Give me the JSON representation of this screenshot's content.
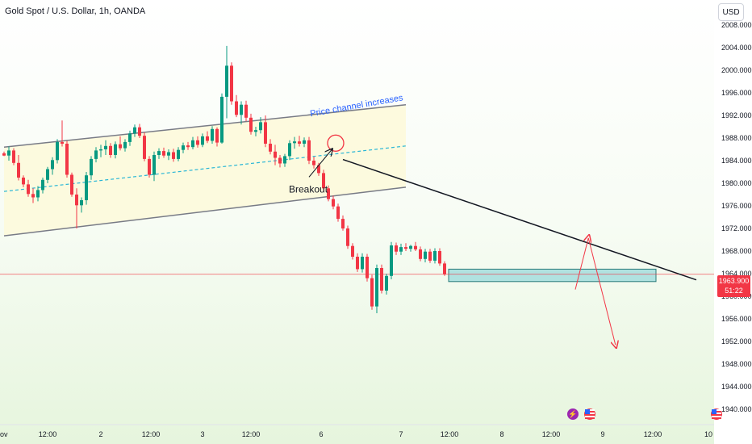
{
  "header": {
    "title": "Gold Spot / U.S. Dollar, 1h, OANDA",
    "currency_button": "USD"
  },
  "annotations": {
    "channel_label": "Price channel increases",
    "breakout_label": "Breakout"
  },
  "last_price": {
    "value": "1963.900",
    "countdown": "51:22"
  },
  "icons": {
    "event_1": "lightning-icon",
    "event_2": "us-flag-icon",
    "event_3": "us-flag-icon"
  },
  "colors": {
    "bull": "#089981",
    "bear": "#f23645",
    "channel_fill": "#fdf9d9",
    "channel_line": "#787b86",
    "mid_line": "#2ab6d6",
    "support_zone": "#9fdcdc",
    "arrow": "#f23645",
    "last_price": "#f23645",
    "annotation_blue": "#2962ff"
  },
  "chart_data": {
    "type": "candlestick",
    "title": "Gold Spot / U.S. Dollar, 1h, OANDA",
    "xlabel": "",
    "ylabel": "",
    "currency": "USD",
    "ylim": [
      1938,
      2010
    ],
    "y_ticks": [
      "2008.000",
      "2004.000",
      "2000.000",
      "1996.000",
      "1992.000",
      "1988.000",
      "1984.000",
      "1980.000",
      "1976.000",
      "1972.000",
      "1968.000",
      "1964.000",
      "1960.000",
      "1956.000",
      "1952.000",
      "1948.000",
      "1944.000",
      "1940.000"
    ],
    "x_ticks": [
      "ov",
      "12:00",
      "2",
      "12:00",
      "3",
      "12:00",
      "6",
      "7",
      "12:00",
      "8",
      "12:00",
      "9",
      "12:00",
      "10"
    ],
    "last_price": 1963.9,
    "candles": [
      [
        1985.3,
        1985.6,
        1984.8,
        1984.9
      ],
      [
        1984.9,
        1986.5,
        1984.0,
        1985.8
      ],
      [
        1985.8,
        1986.2,
        1983.2,
        1983.6
      ],
      [
        1983.6,
        1985.0,
        1980.5,
        1981.0
      ],
      [
        1981.0,
        1981.4,
        1979.3,
        1979.8
      ],
      [
        1979.8,
        1980.6,
        1977.6,
        1978.1
      ],
      [
        1978.1,
        1979.1,
        1976.5,
        1977.5
      ],
      [
        1977.5,
        1979.5,
        1976.8,
        1978.8
      ],
      [
        1978.8,
        1981.0,
        1978.2,
        1980.6
      ],
      [
        1980.6,
        1982.9,
        1980.0,
        1982.5
      ],
      [
        1982.5,
        1984.6,
        1981.5,
        1984.1
      ],
      [
        1984.1,
        1987.8,
        1983.5,
        1987.3
      ],
      [
        1987.3,
        1991.1,
        1986.5,
        1987.0
      ],
      [
        1987.0,
        1987.5,
        1981.0,
        1981.5
      ],
      [
        1981.5,
        1981.9,
        1977.6,
        1978.0
      ],
      [
        1978.0,
        1979.1,
        1972.0,
        1976.1
      ],
      [
        1976.1,
        1977.5,
        1974.8,
        1977.0
      ],
      [
        1977.0,
        1982.0,
        1976.2,
        1981.4
      ],
      [
        1981.4,
        1984.8,
        1980.6,
        1984.3
      ],
      [
        1984.3,
        1986.4,
        1983.7,
        1985.8
      ],
      [
        1985.8,
        1986.8,
        1984.6,
        1986.0
      ],
      [
        1986.0,
        1987.6,
        1985.0,
        1986.6
      ],
      [
        1986.6,
        1987.1,
        1984.5,
        1985.0
      ],
      [
        1985.0,
        1987.4,
        1984.4,
        1986.9
      ],
      [
        1986.9,
        1988.3,
        1985.8,
        1986.2
      ],
      [
        1986.2,
        1987.8,
        1985.6,
        1987.3
      ],
      [
        1987.3,
        1989.3,
        1986.6,
        1988.8
      ],
      [
        1988.8,
        1990.4,
        1988.2,
        1989.9
      ],
      [
        1989.9,
        1990.5,
        1988.0,
        1988.4
      ],
      [
        1988.4,
        1989.0,
        1983.9,
        1984.3
      ],
      [
        1984.3,
        1984.8,
        1981.0,
        1981.5
      ],
      [
        1981.5,
        1985.6,
        1980.4,
        1985.0
      ],
      [
        1985.0,
        1986.2,
        1984.3,
        1985.7
      ],
      [
        1985.7,
        1986.3,
        1984.5,
        1984.9
      ],
      [
        1984.9,
        1986.0,
        1984.1,
        1985.5
      ],
      [
        1985.5,
        1986.1,
        1983.8,
        1984.3
      ],
      [
        1984.3,
        1986.4,
        1983.9,
        1985.9
      ],
      [
        1985.9,
        1987.2,
        1985.3,
        1986.7
      ],
      [
        1986.7,
        1987.3,
        1985.9,
        1986.4
      ],
      [
        1986.4,
        1988.2,
        1986.0,
        1987.6
      ],
      [
        1987.6,
        1988.3,
        1986.3,
        1986.8
      ],
      [
        1986.8,
        1988.8,
        1986.4,
        1988.3
      ],
      [
        1988.3,
        1989.2,
        1987.1,
        1987.5
      ],
      [
        1987.5,
        1990.1,
        1987.0,
        1989.6
      ],
      [
        1989.6,
        1989.9,
        1986.5,
        1987.2
      ],
      [
        1987.2,
        1995.9,
        1987.0,
        1995.3
      ],
      [
        1995.3,
        2004.3,
        1991.5,
        2000.8
      ],
      [
        2000.8,
        2001.4,
        1993.9,
        1994.5
      ],
      [
        1994.5,
        1995.6,
        1991.7,
        1992.1
      ],
      [
        1992.1,
        1994.5,
        1990.4,
        1993.9
      ],
      [
        1993.9,
        1994.6,
        1991.0,
        1991.6
      ],
      [
        1991.6,
        1992.3,
        1988.6,
        1989.1
      ],
      [
        1989.1,
        1990.0,
        1988.3,
        1989.4
      ],
      [
        1989.4,
        1991.7,
        1988.8,
        1990.8
      ],
      [
        1990.8,
        1992.0,
        1986.4,
        1987.0
      ],
      [
        1987.0,
        1987.8,
        1985.1,
        1985.6
      ],
      [
        1985.6,
        1986.8,
        1983.2,
        1984.5
      ],
      [
        1984.5,
        1985.0,
        1982.8,
        1983.5
      ],
      [
        1983.5,
        1985.2,
        1982.9,
        1984.8
      ],
      [
        1984.8,
        1987.6,
        1984.1,
        1987.1
      ],
      [
        1987.1,
        1988.2,
        1986.1,
        1987.4
      ],
      [
        1987.4,
        1988.4,
        1986.5,
        1987.0
      ],
      [
        1987.0,
        1988.1,
        1986.4,
        1987.6
      ],
      [
        1987.6,
        1988.2,
        1983.4,
        1984.0
      ],
      [
        1984.0,
        1984.7,
        1982.6,
        1983.2
      ],
      [
        1983.2,
        1983.6,
        1981.3,
        1981.8
      ],
      [
        1981.8,
        1982.4,
        1978.6,
        1979.1
      ],
      [
        1979.1,
        1979.6,
        1976.8,
        1977.2
      ],
      [
        1977.2,
        1977.8,
        1975.4,
        1975.9
      ],
      [
        1975.9,
        1976.4,
        1973.2,
        1973.7
      ],
      [
        1973.7,
        1974.3,
        1971.6,
        1972.0
      ],
      [
        1972.0,
        1972.5,
        1968.4,
        1968.9
      ],
      [
        1968.9,
        1969.4,
        1966.5,
        1967.0
      ],
      [
        1967.0,
        1967.6,
        1964.3,
        1964.8
      ],
      [
        1964.8,
        1967.6,
        1964.2,
        1967.0
      ],
      [
        1967.0,
        1967.5,
        1962.6,
        1963.2
      ],
      [
        1963.2,
        1963.8,
        1957.6,
        1958.2
      ],
      [
        1958.2,
        1965.6,
        1957.0,
        1965.0
      ],
      [
        1965.0,
        1965.6,
        1960.5,
        1961.0
      ],
      [
        1961.0,
        1964.0,
        1960.3,
        1963.6
      ],
      [
        1963.6,
        1969.6,
        1963.0,
        1969.0
      ],
      [
        1969.0,
        1969.5,
        1967.3,
        1967.9
      ],
      [
        1967.9,
        1969.3,
        1967.3,
        1968.7
      ],
      [
        1968.7,
        1969.4,
        1968.0,
        1968.4
      ],
      [
        1968.4,
        1969.1,
        1967.9,
        1968.9
      ],
      [
        1968.9,
        1969.6,
        1968.0,
        1968.3
      ],
      [
        1968.3,
        1968.8,
        1966.2,
        1966.6
      ],
      [
        1966.6,
        1968.4,
        1966.0,
        1967.9
      ],
      [
        1967.9,
        1968.4,
        1965.9,
        1966.3
      ],
      [
        1966.3,
        1968.5,
        1965.8,
        1968.0
      ],
      [
        1968.0,
        1968.5,
        1965.4,
        1965.8
      ],
      [
        1965.8,
        1966.2,
        1963.6,
        1963.9
      ]
    ],
    "annotations": [
      {
        "type": "channel",
        "label": "Price channel increases",
        "upper": [
          [
            0,
            1986.4
          ],
          [
            83,
            1993.9
          ]
        ],
        "lower": [
          [
            0,
            1970.7
          ],
          [
            83,
            1979.3
          ]
        ]
      },
      {
        "type": "trendline",
        "points": [
          [
            70,
            1984.2
          ],
          [
            143,
            1962.9
          ]
        ]
      },
      {
        "type": "zone",
        "label": "support",
        "y_range": [
          1962.6,
          1964.8
        ]
      },
      {
        "type": "text",
        "label": "Breakout"
      }
    ]
  }
}
